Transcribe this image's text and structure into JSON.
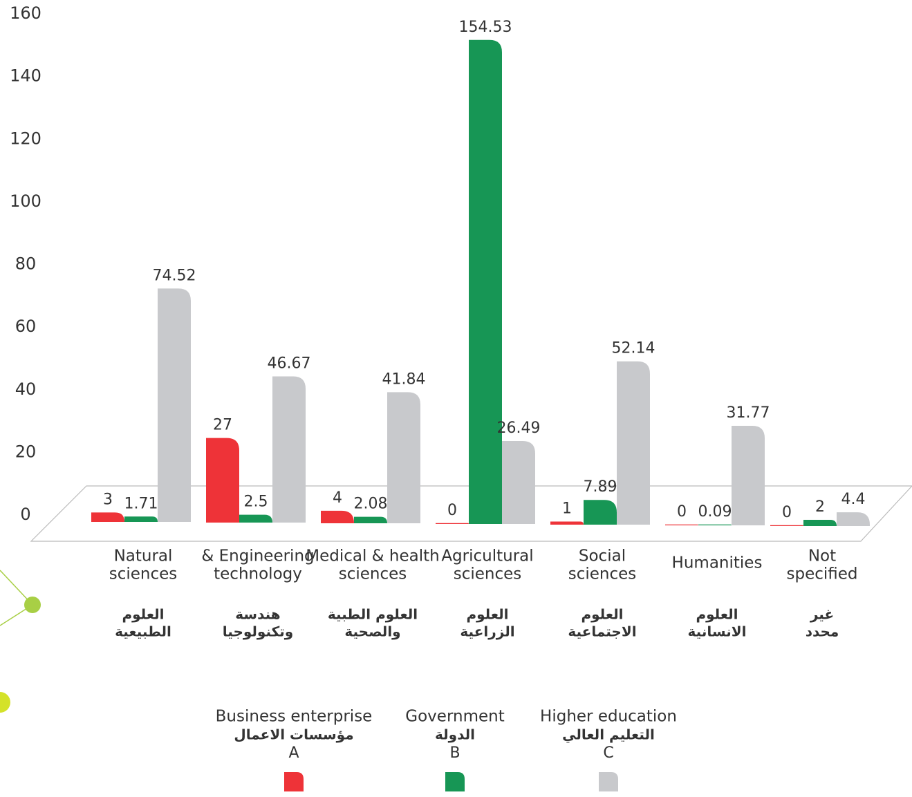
{
  "chart_data": {
    "type": "bar",
    "categories": [
      [
        "Natural",
        "sciences"
      ],
      [
        "& Engineering",
        "technology"
      ],
      [
        "Medical & health",
        "sciences"
      ],
      [
        "Agricultural",
        "sciences"
      ],
      [
        "Social",
        "sciences"
      ],
      [
        "Humanities"
      ],
      [
        "Not",
        "specified"
      ]
    ],
    "categories_ar": [
      [
        "العلوم",
        "الطبيعية"
      ],
      [
        "هندسة",
        "وتكنولوجيا"
      ],
      [
        "العلوم الطبية",
        "والصحية"
      ],
      [
        "العلوم",
        "الزراعية"
      ],
      [
        "العلوم",
        "الاجتماعية"
      ],
      [
        "العلوم",
        "الانسانية"
      ],
      [
        "غير",
        "محدد"
      ]
    ],
    "series": [
      {
        "name": "Business enterprise",
        "name_ar": "مؤسسات الاعمال",
        "letter": "A",
        "color": "#ee3338",
        "values": [
          3,
          27,
          4,
          0,
          1,
          0,
          0
        ]
      },
      {
        "name": "Government",
        "name_ar": "الدولة",
        "letter": "B",
        "color": "#179655",
        "values": [
          1.71,
          2.5,
          2.08,
          154.53,
          7.89,
          0.09,
          2
        ]
      },
      {
        "name": "Higher education",
        "name_ar": "التعليم العالي",
        "letter": "C",
        "color": "#c8c9cc",
        "values": [
          74.52,
          46.67,
          41.84,
          26.49,
          52.14,
          31.77,
          4.4
        ]
      }
    ],
    "ylim": [
      0,
      160
    ],
    "yticks": [
      0,
      20,
      40,
      60,
      80,
      100,
      120,
      140,
      160
    ]
  }
}
